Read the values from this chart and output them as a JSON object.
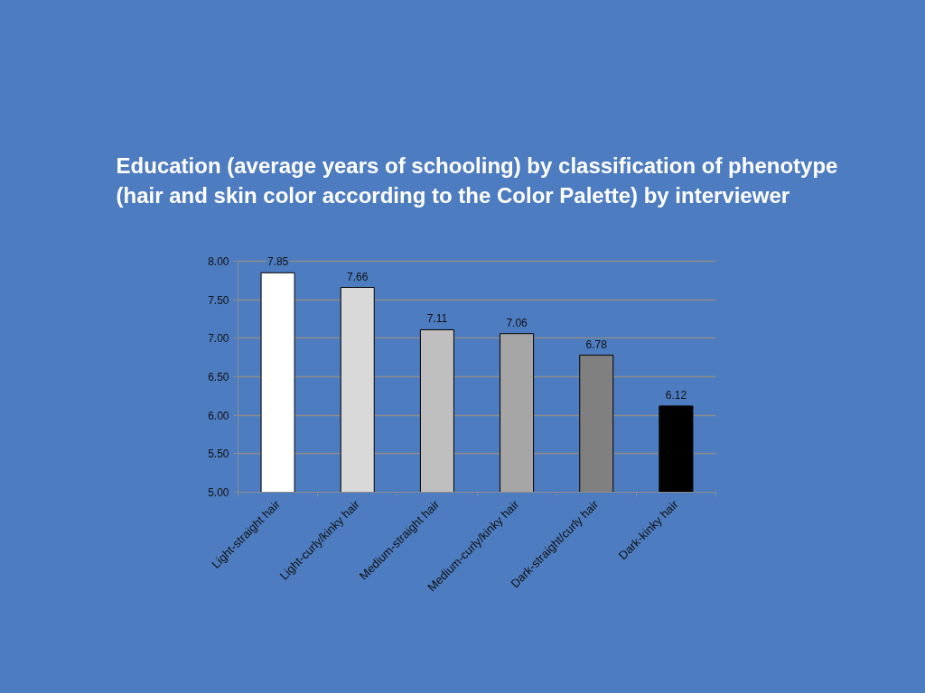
{
  "chart_data": {
    "type": "bar",
    "title": "Education (average years of schooling) by classification of phenotype\n(hair and skin color according to the Color Palette) by interviewer",
    "categories": [
      "Light-straight hair",
      "Light-curly/kinky hair",
      "Medium-straight hair",
      "Medium-curly/kinky hair",
      "Dark-straight/curly hair",
      "Dark-kinky hair"
    ],
    "values": [
      7.85,
      7.66,
      7.11,
      7.06,
      6.78,
      6.12
    ],
    "colors": [
      "#ffffff",
      "#d9d9d9",
      "#bfbfbf",
      "#a6a6a6",
      "#808080",
      "#000000"
    ],
    "ylim": [
      5,
      8
    ],
    "yticks": [
      {
        "value": 5,
        "label": "5.00"
      },
      {
        "value": 5.5,
        "label": "5.50"
      },
      {
        "value": 6,
        "label": "6.00"
      },
      {
        "value": 6.5,
        "label": "6.50"
      },
      {
        "value": 7,
        "label": "7.00"
      },
      {
        "value": 7.5,
        "label": "7.50"
      },
      {
        "value": 8,
        "label": "8.00"
      }
    ],
    "grid": "y",
    "data_labels": true
  }
}
